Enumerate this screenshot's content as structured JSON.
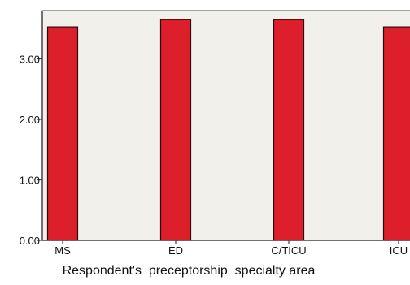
{
  "chart_data": {
    "type": "bar",
    "categories": [
      "MS",
      "ED",
      "C/TICU",
      "ICU"
    ],
    "values": [
      3.53,
      3.65,
      3.65,
      3.53
    ],
    "xlabel": "Respondent's  preceptorship  specialty area",
    "ylabel": "",
    "ylim": [
      0,
      3.8
    ],
    "yticks": [
      0.0,
      1.0,
      2.0,
      3.0
    ],
    "ytick_labels": [
      "0.00",
      "1.00",
      "2.00",
      "3.00"
    ],
    "grid": false,
    "legend": "none",
    "colors": {
      "bar": "#dd1f2b",
      "bar_edge": "#2b0a0a",
      "plot_bg": "#f1f0ea",
      "frame": "#444444"
    }
  }
}
